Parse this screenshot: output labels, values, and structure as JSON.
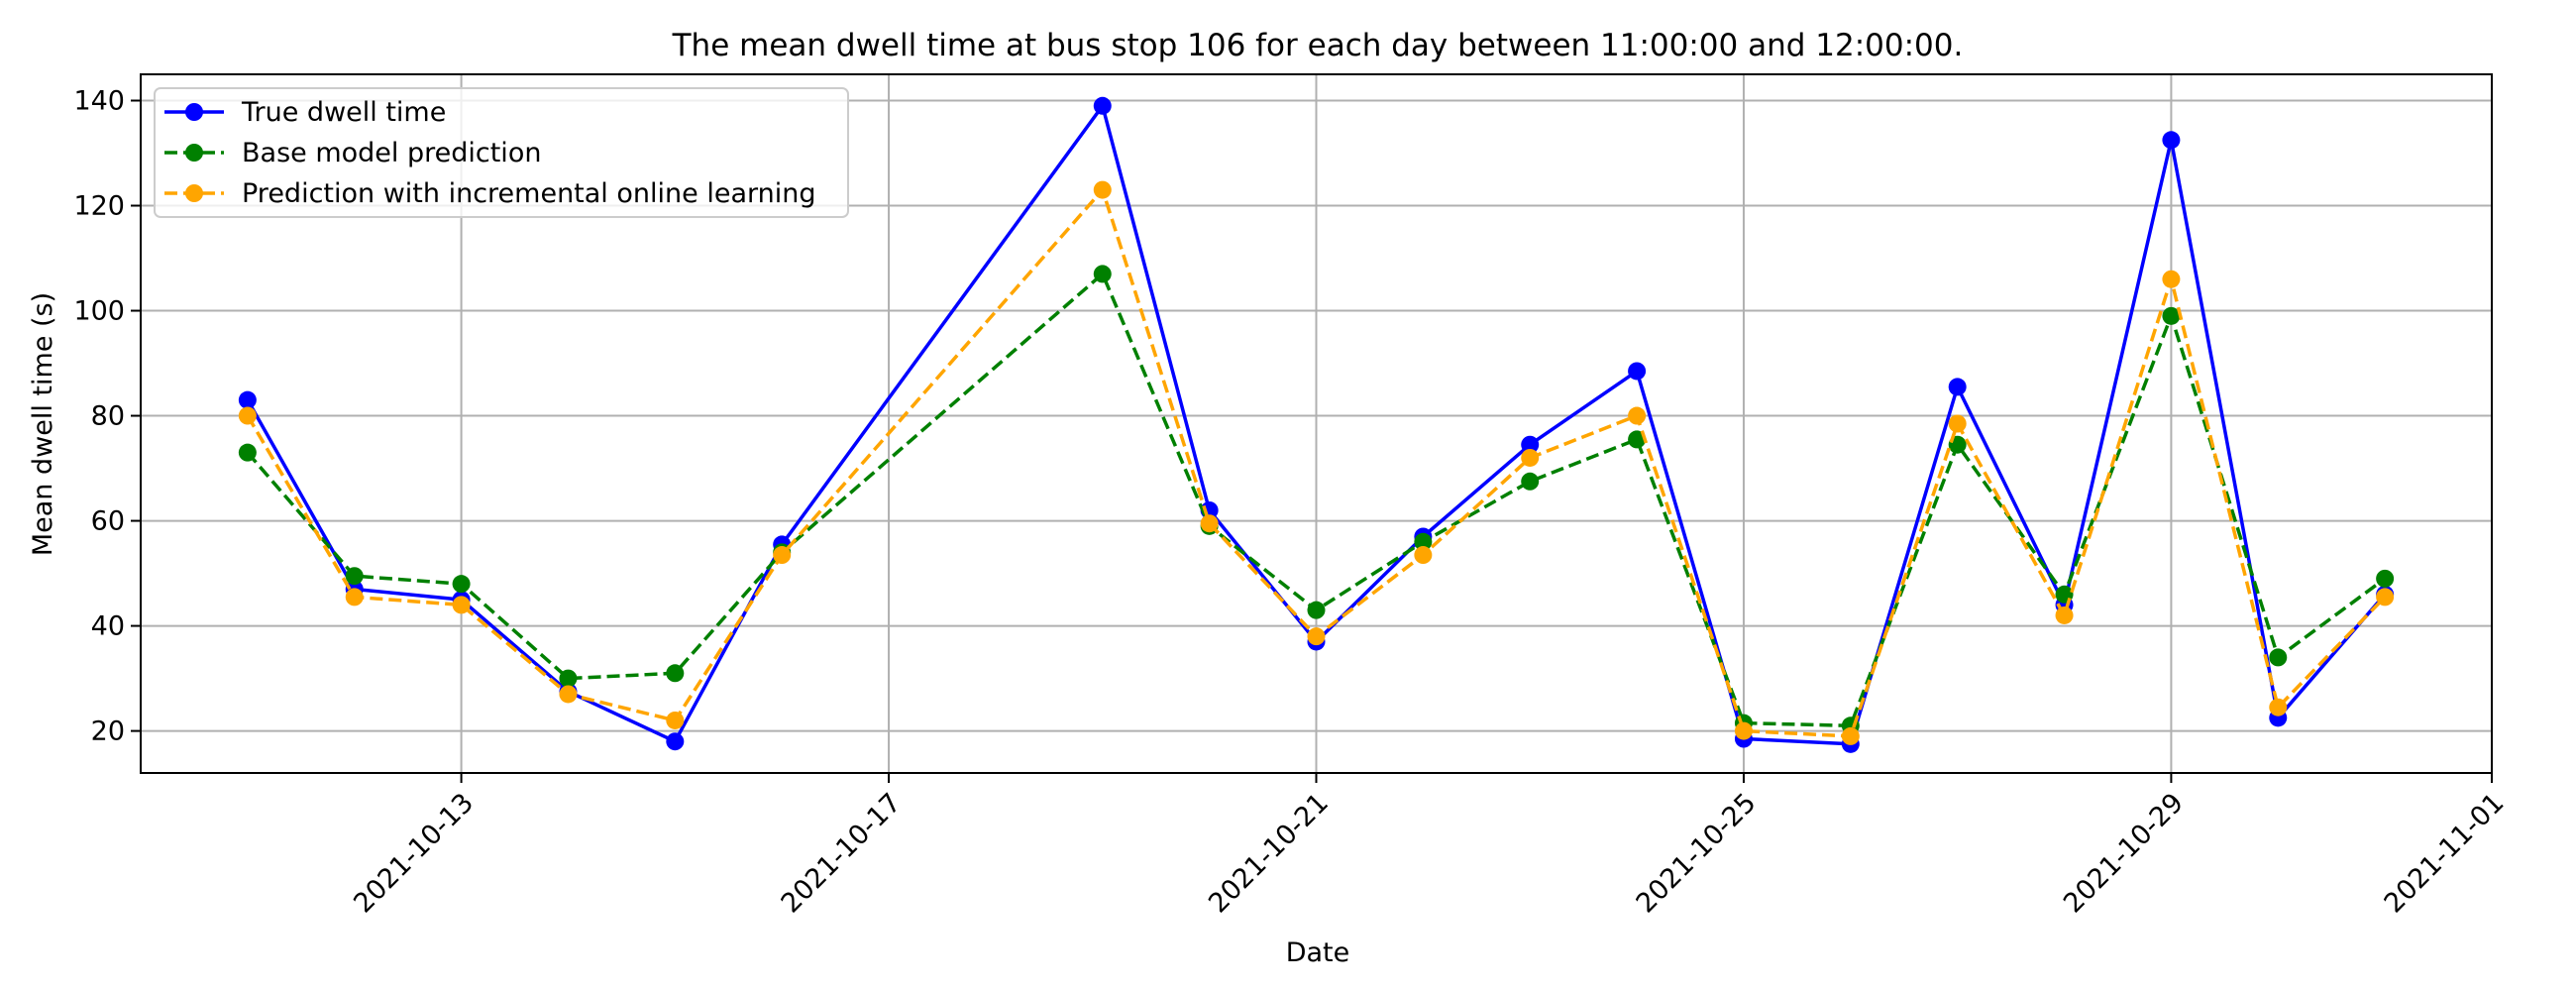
{
  "chart_data": {
    "type": "line",
    "title": "The mean dwell time at bus stop 106 for each day between 11:00:00 and 12:00:00.",
    "xlabel": "Date",
    "ylabel": "Mean dwell time (s)",
    "xlim": [
      "2021-10-10",
      "2021-11-01"
    ],
    "ylim": [
      12,
      145
    ],
    "grid": true,
    "legend_position": "upper-left",
    "x_ticks": [
      "2021-10-13",
      "2021-10-17",
      "2021-10-21",
      "2021-10-25",
      "2021-10-29",
      "2021-11-01"
    ],
    "y_ticks": [
      20,
      40,
      60,
      80,
      100,
      120,
      140
    ],
    "x": [
      "2021-10-11",
      "2021-10-12",
      "2021-10-13",
      "2021-10-14",
      "2021-10-15",
      "2021-10-16",
      "2021-10-19",
      "2021-10-20",
      "2021-10-21",
      "2021-10-22",
      "2021-10-23",
      "2021-10-24",
      "2021-10-25",
      "2021-10-26",
      "2021-10-27",
      "2021-10-28",
      "2021-10-29",
      "2021-10-30",
      "2021-10-31"
    ],
    "series": [
      {
        "name": "True dwell time",
        "color": "#0000ff",
        "line_style": "solid",
        "values": [
          83,
          47,
          45,
          27.5,
          18,
          55.5,
          139,
          62,
          37,
          57,
          74.5,
          88.5,
          18.5,
          17.5,
          85.5,
          44,
          132.5,
          22.5,
          46
        ]
      },
      {
        "name": "Base model prediction",
        "color": "#008000",
        "line_style": "dashed",
        "values": [
          73,
          49.5,
          48,
          30,
          31,
          54,
          107,
          59,
          43,
          56,
          67.5,
          75.5,
          21.5,
          21,
          74.5,
          46,
          99,
          34,
          49
        ]
      },
      {
        "name": "Prediction with incremental online learning",
        "color": "#ffa500",
        "line_style": "dashed",
        "values": [
          80,
          45.5,
          44,
          27,
          22,
          53.5,
          123,
          59.5,
          38,
          53.5,
          72,
          80,
          20,
          19,
          78.5,
          42,
          106,
          24.5,
          45.5
        ]
      }
    ]
  }
}
